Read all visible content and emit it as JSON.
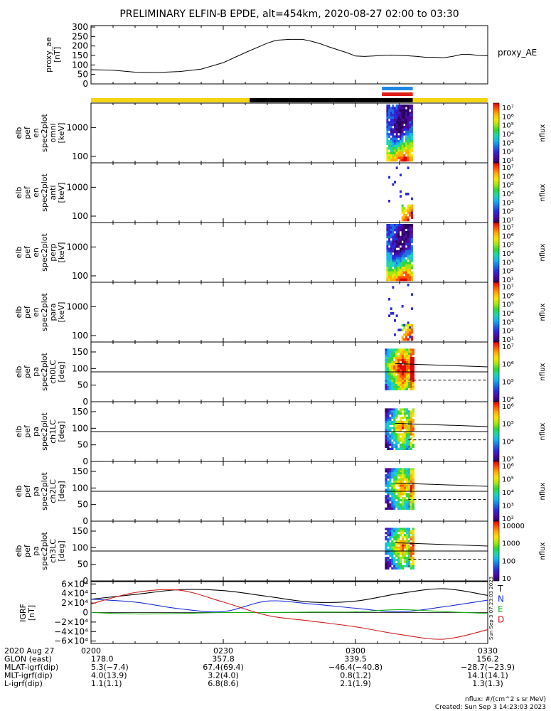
{
  "title": "PRELIMINARY ELFIN-B EPDE, alt=454km, 2020-08-27 02:00 to 03:30",
  "colors": {
    "ae_line": "#000000",
    "bar_yellow": "#f5d410",
    "bar_black": "#000000",
    "bar_blue": "#1e88e5",
    "bar_red": "#e21b1b",
    "igrf_total": "#000000",
    "igrf_n": "#1b2fd6",
    "igrf_e": "#16b316",
    "igrf_d": "#d11a1a",
    "colormap": [
      "#2a0060",
      "#4b0a9e",
      "#2a2ad8",
      "#1f6fe0",
      "#17b4e8",
      "#1ed6b0",
      "#35d43a",
      "#a4e612",
      "#f5e600",
      "#ffb000",
      "#ff5500",
      "#e00000"
    ]
  },
  "time_axis": {
    "labels": [
      "0200",
      "0230",
      "0300",
      "0330"
    ],
    "range_min": [
      0,
      90
    ]
  },
  "legend_bars": {
    "segments": [
      {
        "state": "yellow",
        "from": 0,
        "to": 36
      },
      {
        "state": "black",
        "from": 36,
        "to": 73
      },
      {
        "state": "yellow",
        "from": 73,
        "to": 90
      }
    ],
    "science_zones": [
      {
        "state": "blue",
        "from": 66,
        "to": 73
      },
      {
        "state": "red",
        "from": 66,
        "to": 73
      }
    ]
  },
  "panels": {
    "ae": {
      "ylabel": [
        "proxy_ae",
        "[nT]"
      ],
      "yticks": [
        "0",
        "50",
        "100",
        "150",
        "200",
        "250",
        "300"
      ],
      "right_label": "proxy_AE"
    },
    "en_omni": {
      "ylabel": [
        "elb",
        "pef",
        "en",
        "spec2plot",
        "omni",
        "[keV]"
      ],
      "yticks": [
        "100",
        "1000"
      ],
      "cb_labels": [
        "10⁷",
        "10⁶",
        "10⁵",
        "10⁴",
        "10³",
        "10²",
        "10¹"
      ],
      "cb_title": "nflux"
    },
    "en_anti": {
      "ylabel": [
        "elb",
        "pef",
        "en",
        "spec2plot",
        "anti",
        "[keV]"
      ],
      "yticks": [
        "100",
        "1000"
      ],
      "cb_labels": [
        "10⁷",
        "10⁶",
        "10⁵",
        "10⁴",
        "10³",
        "10²",
        "10¹"
      ],
      "cb_title": "nflux"
    },
    "en_perp": {
      "ylabel": [
        "elb",
        "pef",
        "en",
        "spec2plot",
        "perp",
        "[keV]"
      ],
      "yticks": [
        "100",
        "1000"
      ],
      "cb_labels": [
        "10⁷",
        "10⁶",
        "10⁵",
        "10⁴",
        "10³",
        "10²",
        "10¹"
      ],
      "cb_title": "nflux"
    },
    "en_para": {
      "ylabel": [
        "elb",
        "pef",
        "en",
        "spec2plot",
        "para",
        "[keV]"
      ],
      "yticks": [
        "100",
        "1000"
      ],
      "cb_labels": [
        "10⁷",
        "10⁶",
        "10⁵",
        "10⁴",
        "10³",
        "10²",
        "10¹"
      ],
      "cb_title": "nflux"
    },
    "pa_ch0": {
      "ylabel": [
        "elb",
        "pef",
        "pa",
        "spec2plot",
        "ch0LC",
        "[deg]"
      ],
      "yticks": [
        "0",
        "50",
        "100",
        "150"
      ],
      "cb_labels": [
        "10⁷",
        "10⁶",
        "10⁵",
        "10⁴"
      ],
      "cb_title": "nflux"
    },
    "pa_ch1": {
      "ylabel": [
        "elb",
        "pef",
        "pa",
        "spec2plot",
        "ch1LC",
        "[deg]"
      ],
      "yticks": [
        "0",
        "50",
        "100",
        "150"
      ],
      "cb_labels": [
        "10⁶",
        "10⁵",
        "10⁴",
        "10³"
      ],
      "cb_title": "nflux"
    },
    "pa_ch2": {
      "ylabel": [
        "elb",
        "pef",
        "pa",
        "spec2plot",
        "ch2LC",
        "[deg]"
      ],
      "yticks": [
        "0",
        "50",
        "100",
        "150"
      ],
      "cb_labels": [
        "10⁶",
        "10⁵",
        "10⁴",
        "10³",
        "10²"
      ],
      "cb_title": "nflux"
    },
    "pa_ch3": {
      "ylabel": [
        "elb",
        "pef",
        "pa",
        "spec2plot",
        "ch3LC",
        "[deg]"
      ],
      "yticks": [
        "0",
        "50",
        "100",
        "150"
      ],
      "cb_labels": [
        "10000",
        "1000",
        "100",
        "10"
      ],
      "cb_title": "nflux"
    },
    "igrf": {
      "ylabel": [
        "IGRF",
        "[nT]"
      ],
      "yticks": [
        "−6×10⁴",
        "−4×10⁴",
        "−2×10⁴",
        "0",
        "2×10⁴",
        "4×10⁴",
        "6×10⁴"
      ],
      "legend": [
        "T",
        "N",
        "E",
        "D"
      ],
      "stamp": "Sun Sep  3 07:23:03 2023"
    }
  },
  "chart_data": [
    {
      "type": "line",
      "name": "proxy_AE",
      "x_min": [
        0,
        5,
        10,
        15,
        20,
        25,
        30,
        35,
        40,
        42,
        45,
        48,
        50,
        52,
        54,
        56,
        58,
        60,
        62,
        64,
        66,
        68,
        70,
        72,
        74,
        76,
        78,
        80,
        82,
        84,
        86,
        88,
        90
      ],
      "y_nT": [
        75,
        72,
        62,
        60,
        65,
        78,
        112,
        165,
        215,
        230,
        235,
        235,
        225,
        212,
        195,
        180,
        165,
        147,
        145,
        147,
        150,
        152,
        150,
        148,
        145,
        140,
        140,
        138,
        145,
        155,
        155,
        150,
        148
      ],
      "ylim": [
        0,
        300
      ]
    },
    {
      "type": "heatmap",
      "name": "energy spectra (omni, anti, perp, para)",
      "x_range_min": [
        67,
        73
      ],
      "ylim_keV": [
        60,
        7000
      ],
      "y_scale": "log",
      "colorbar": "nflux"
    },
    {
      "type": "heatmap",
      "name": "pitch-angle spectra ch0LC-ch3LC",
      "x_range_min": [
        67,
        73
      ],
      "ylim_deg": [
        0,
        180
      ],
      "reference_lines_deg": [
        90
      ],
      "loss_cone_solid_deg": [
        115,
        105
      ],
      "loss_cone_dashed_deg": [
        65,
        65
      ],
      "colorbar": "nflux"
    },
    {
      "type": "line",
      "name": "IGRF components",
      "x_min": [
        0,
        10,
        20,
        30,
        40,
        50,
        60,
        70,
        80,
        90
      ],
      "series": [
        {
          "name": "T",
          "values": [
            28000,
            38000,
            48000,
            46000,
            34000,
            22000,
            24000,
            40000,
            50000,
            36000
          ]
        },
        {
          "name": "N",
          "values": [
            28000,
            22000,
            8000,
            2000,
            24000,
            18000,
            9000,
            1500,
            12000,
            26000
          ]
        },
        {
          "name": "E",
          "values": [
            0,
            -3000,
            -2000,
            0,
            0,
            1000,
            1500,
            6000,
            2000,
            -2000
          ]
        },
        {
          "name": "D",
          "values": [
            18000,
            42000,
            47000,
            22000,
            -6000,
            -18000,
            -30000,
            -46000,
            -56000,
            -36000
          ]
        }
      ],
      "ylim": [
        -65000,
        65000
      ]
    }
  ],
  "footer": {
    "row_labels": [
      "2020 Aug 27",
      "GLON (east)",
      "MLAT-igrf(dip)",
      "MLT-igrf(dip)",
      "L-igrf(dip)"
    ],
    "cols": [
      [
        "0200",
        "178.0",
        "5.3(−7.4)",
        "4.0(13.9)",
        "1.1(1.1)"
      ],
      [
        "0230",
        "357.8",
        "67.4(69.4)",
        "3.2(4.0)",
        "6.8(8.6)"
      ],
      [
        "0300",
        "339.5",
        "−46.4(−40.8)",
        "0.8(1.2)",
        "2.1(1.9)"
      ],
      [
        "0330",
        "156.2",
        "−28.7(−23.9)",
        "14.1(14.1)",
        "1.3(1.3)"
      ]
    ],
    "units": "nflux: #/(cm^2 s sr MeV)",
    "created": "Created: Sun Sep  3 14:23:03 2023"
  }
}
